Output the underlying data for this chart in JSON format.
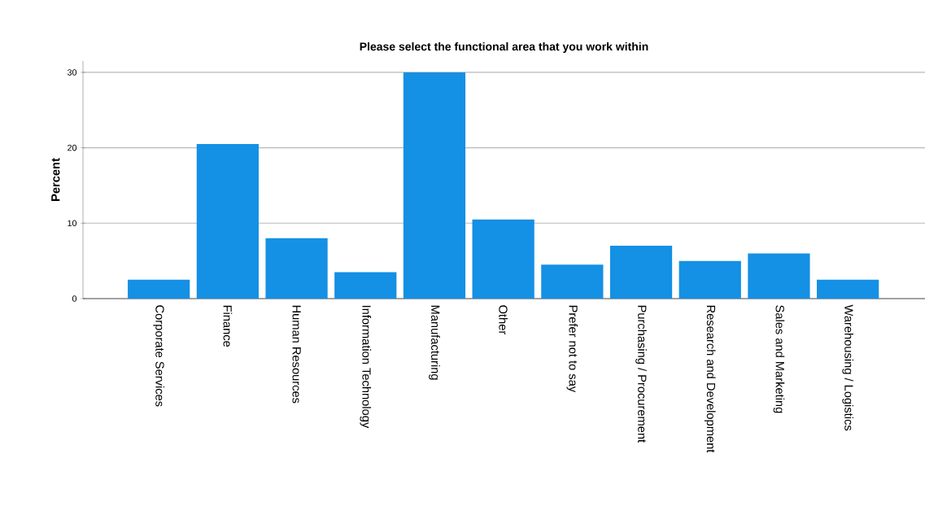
{
  "chart_data": {
    "type": "bar",
    "title": "Please select the functional area that you work within",
    "ylabel": "Percent",
    "categories": [
      "Corporate Services",
      "Finance",
      "Human Resources",
      "Information Technology",
      "Manufacturing",
      "Other",
      "Prefer not to say",
      "Purchasing / Procurement",
      "Research and Development",
      "Sales and Marketing",
      "Warehousing / Logistics"
    ],
    "values": [
      2.5,
      20.5,
      8,
      3.5,
      30,
      10.5,
      4.5,
      7,
      5,
      6,
      2.5
    ],
    "color": "#1490e4",
    "ylim": [
      0,
      31.5
    ],
    "yticks": [
      0,
      10,
      20,
      30
    ],
    "grid": "y"
  }
}
